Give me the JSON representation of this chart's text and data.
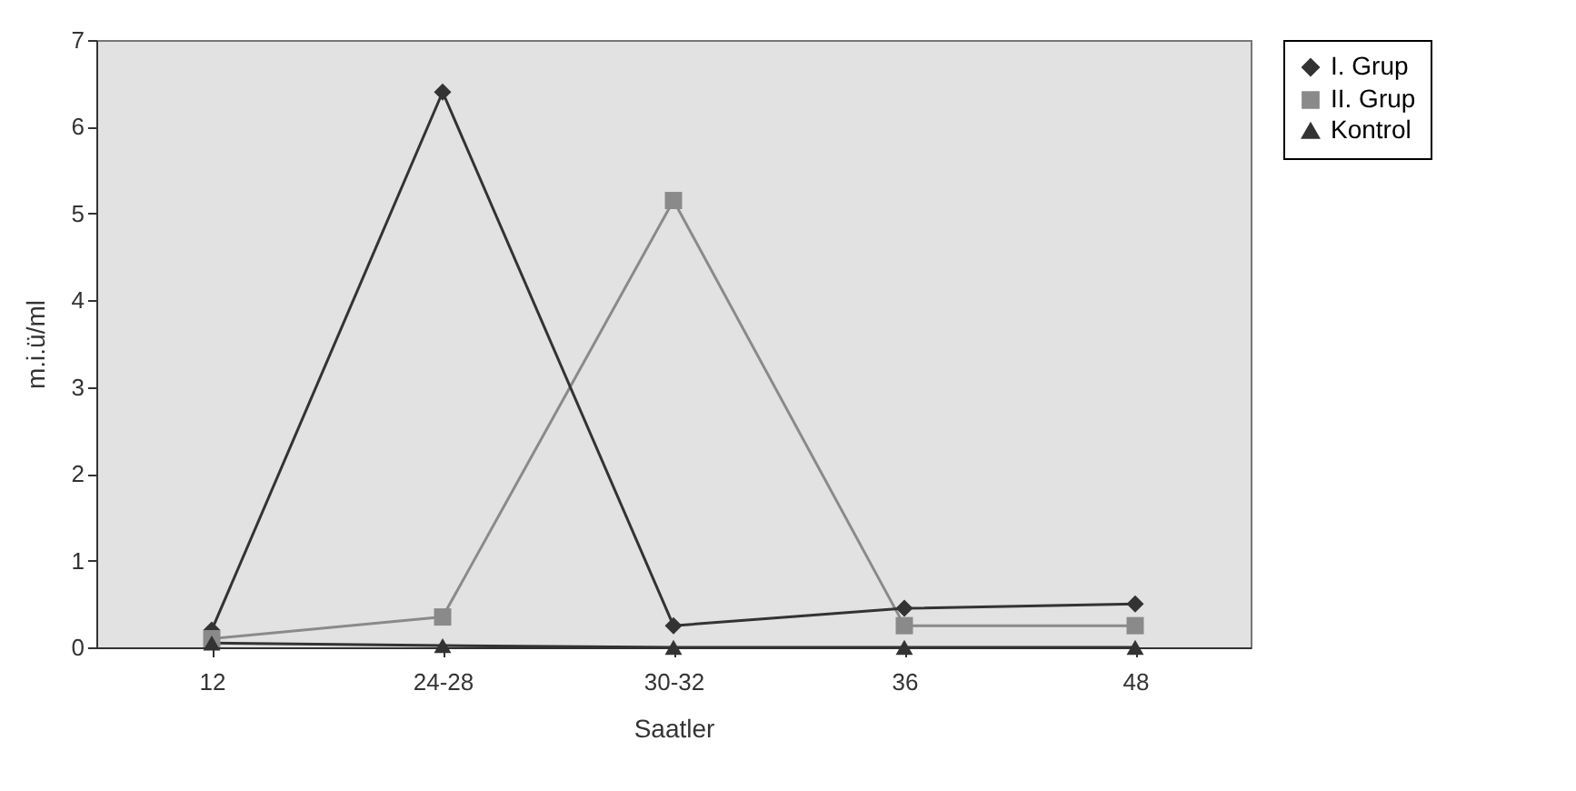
{
  "chart_data": {
    "type": "line",
    "xlabel": "Saatler",
    "ylabel": "m.i.ü/ml",
    "categories": [
      "12",
      "24-28",
      "30-32",
      "36",
      "48"
    ],
    "series": [
      {
        "name": "I. Grup",
        "color": "#333333",
        "marker": "diamond",
        "values": [
          0.2,
          6.4,
          0.25,
          0.45,
          0.5
        ]
      },
      {
        "name": "II. Grup",
        "color": "#8a8a8a",
        "marker": "square",
        "values": [
          0.1,
          0.35,
          5.15,
          0.25,
          0.25
        ]
      },
      {
        "name": "Kontrol",
        "color": "#333333",
        "marker": "triangle",
        "values": [
          0.05,
          0.02,
          0,
          0,
          0
        ]
      }
    ],
    "ylim": [
      0,
      7
    ],
    "yticks": [
      0,
      1,
      2,
      3,
      4,
      5,
      6,
      7
    ],
    "grid": false,
    "legend": "right"
  }
}
